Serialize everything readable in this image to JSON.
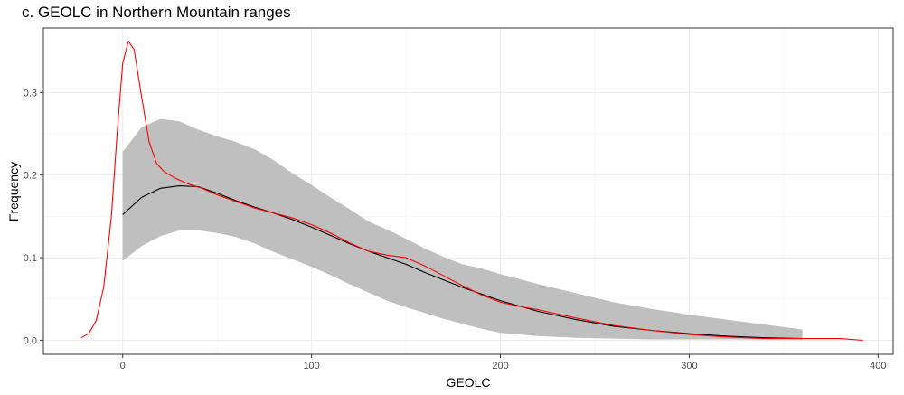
{
  "chart_data": {
    "type": "line",
    "title": "c. GEOLC in Northern Mountain ranges",
    "xlabel": "GEOLC",
    "ylabel": "Frequency",
    "xlim": [
      -42,
      408
    ],
    "ylim": [
      -0.017,
      0.378
    ],
    "x_ticks": [
      0,
      100,
      200,
      300,
      400
    ],
    "x_tick_labels": [
      "0",
      "100",
      "200",
      "300",
      "400"
    ],
    "y_ticks": [
      0.0,
      0.1,
      0.2,
      0.3
    ],
    "y_tick_labels": [
      "0.0",
      "0.1",
      "0.2",
      "0.3"
    ],
    "grid": true,
    "legend": "none",
    "colors": {
      "band": "#bfbfbf",
      "mean": "#000000",
      "observed": "#ff0000",
      "grid_major": "#ebebeb",
      "grid_minor": "#f5f5f5",
      "panel_border": "#333333"
    },
    "series": [
      {
        "role": "band",
        "x": [
          0,
          10,
          20,
          30,
          40,
          50,
          60,
          70,
          80,
          90,
          100,
          110,
          120,
          130,
          140,
          150,
          160,
          170,
          180,
          190,
          200,
          220,
          240,
          260,
          280,
          300,
          320,
          340,
          360
        ],
        "lower": [
          0.096,
          0.114,
          0.126,
          0.133,
          0.133,
          0.13,
          0.125,
          0.117,
          0.107,
          0.098,
          0.089,
          0.079,
          0.068,
          0.058,
          0.048,
          0.04,
          0.033,
          0.026,
          0.02,
          0.014,
          0.009,
          0.005,
          0.003,
          0.002,
          0.001,
          0.001,
          0.001,
          0.001,
          0.001
        ],
        "upper": [
          0.228,
          0.258,
          0.268,
          0.265,
          0.255,
          0.247,
          0.24,
          0.231,
          0.218,
          0.202,
          0.188,
          0.173,
          0.159,
          0.144,
          0.134,
          0.123,
          0.111,
          0.101,
          0.092,
          0.087,
          0.08,
          0.068,
          0.057,
          0.046,
          0.038,
          0.031,
          0.025,
          0.019,
          0.013
        ]
      },
      {
        "role": "mean",
        "x": [
          0,
          10,
          20,
          30,
          40,
          50,
          60,
          70,
          80,
          90,
          100,
          110,
          120,
          130,
          140,
          150,
          160,
          170,
          180,
          190,
          200,
          220,
          240,
          260,
          280,
          300,
          320,
          340,
          360
        ],
        "y": [
          0.152,
          0.173,
          0.184,
          0.187,
          0.186,
          0.178,
          0.169,
          0.161,
          0.154,
          0.146,
          0.137,
          0.127,
          0.117,
          0.108,
          0.1,
          0.092,
          0.082,
          0.073,
          0.064,
          0.056,
          0.048,
          0.035,
          0.025,
          0.017,
          0.012,
          0.008,
          0.005,
          0.003,
          0.002
        ]
      },
      {
        "role": "observed",
        "x": [
          -22,
          -18,
          -14,
          -10,
          -6,
          -3,
          0,
          3,
          6,
          10,
          14,
          18,
          22,
          28,
          35,
          42,
          50,
          60,
          70,
          80,
          90,
          100,
          110,
          120,
          130,
          140,
          150,
          160,
          170,
          180,
          190,
          200,
          210,
          220,
          240,
          260,
          280,
          300,
          320,
          340,
          360,
          380,
          392
        ],
        "y": [
          0.003,
          0.008,
          0.024,
          0.065,
          0.15,
          0.25,
          0.335,
          0.362,
          0.352,
          0.295,
          0.24,
          0.214,
          0.204,
          0.196,
          0.189,
          0.184,
          0.176,
          0.168,
          0.16,
          0.154,
          0.148,
          0.14,
          0.13,
          0.118,
          0.108,
          0.103,
          0.1,
          0.09,
          0.078,
          0.066,
          0.055,
          0.046,
          0.041,
          0.037,
          0.027,
          0.018,
          0.012,
          0.007,
          0.004,
          0.002,
          0.002,
          0.002,
          0.0
        ]
      }
    ]
  }
}
